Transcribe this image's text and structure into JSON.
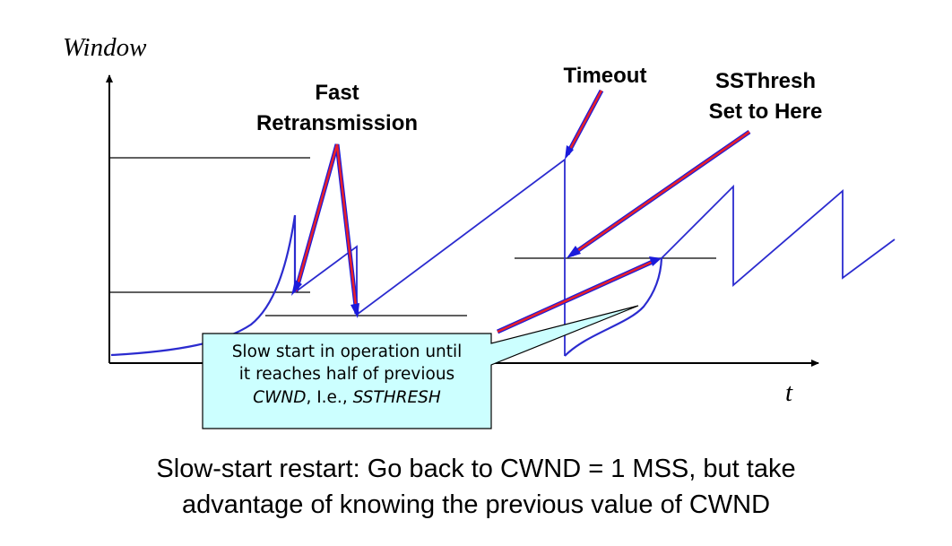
{
  "axes": {
    "y_label": "Window",
    "x_label": "t"
  },
  "annotations": {
    "fast_retransmission": [
      "Fast",
      "Retransmission"
    ],
    "timeout": "Timeout",
    "ssthresh": [
      "SSThresh",
      "Set to Here"
    ]
  },
  "callout": {
    "line1": "Slow start in operation until",
    "line2": "it reaches half of previous",
    "line3_part1": "CWND",
    "line3_part2": ", I.e., ",
    "line3_part3": "SSTHRESH"
  },
  "caption": {
    "line1": "Slow-start restart: Go back to CWND = 1 MSS, but take",
    "line2": "advantage of knowing the previous value of CWND"
  },
  "colors": {
    "curve": "#2b2bcf",
    "arrow_red": "#e8202a",
    "arrow_blue": "#1a1adb",
    "callout_fill": "#ccffff"
  }
}
